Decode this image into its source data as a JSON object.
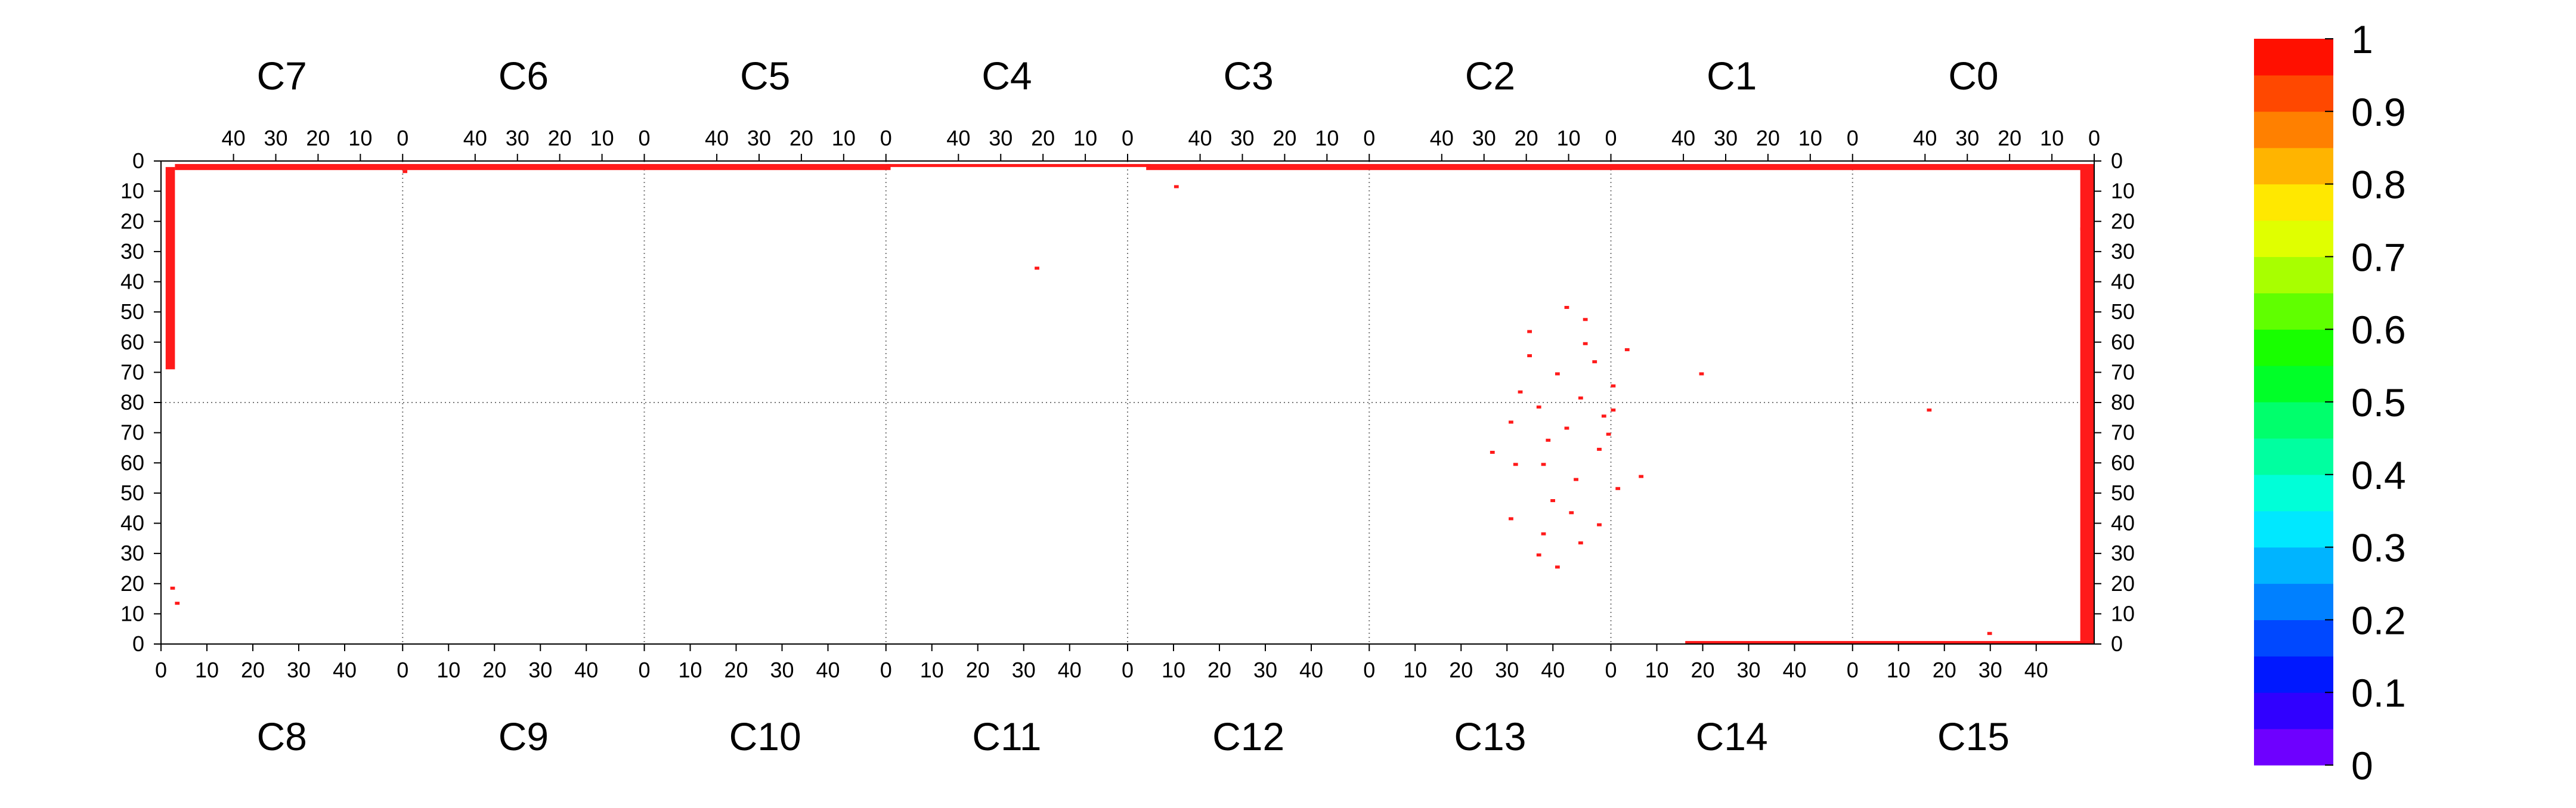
{
  "chart_data": {
    "type": "heatmap",
    "title": "",
    "xlabel": "",
    "ylabel": "",
    "chip_labels_top": [
      "C7",
      "C6",
      "C5",
      "C4",
      "C3",
      "C2",
      "C1",
      "C0"
    ],
    "chip_labels_bottom": [
      "C8",
      "C9",
      "C10",
      "C11",
      "C12",
      "C13",
      "C14",
      "C15"
    ],
    "x_tick_labels_top": [
      "40",
      "30",
      "20",
      "10",
      "0"
    ],
    "x_tick_labels_bottom": [
      "0",
      "10",
      "20",
      "30",
      "40"
    ],
    "y_tick_labels_top_half": [
      "0",
      "10",
      "20",
      "30",
      "40",
      "50",
      "60",
      "70",
      "80"
    ],
    "y_tick_labels_bottom_half": [
      "0",
      "10",
      "20",
      "30",
      "40",
      "50",
      "60",
      "70"
    ],
    "colorbar": {
      "tick_labels": [
        "1",
        "0.9",
        "0.8",
        "0.7",
        "0.6",
        "0.5",
        "0.4",
        "0.3",
        "0.2",
        "0.1",
        "0"
      ],
      "zlim": [
        0,
        1
      ],
      "palette": [
        "#6e00ff",
        "#3000ff",
        "#0018ff",
        "#0048ff",
        "#0080ff",
        "#00b4ff",
        "#00e8ff",
        "#00ffd8",
        "#00ffa0",
        "#00ff6c",
        "#00ff28",
        "#18ff00",
        "#60ff00",
        "#a8ff00",
        "#e0ff00",
        "#ffe800",
        "#ffb400",
        "#ff8000",
        "#ff4800",
        "#ff1000"
      ]
    },
    "grid": true,
    "legend": "colorbar-right",
    "high_value_color": "#ff1a1a",
    "pixel_columns": 416,
    "pixel_rows": 160,
    "hot_regions_value": 1,
    "hot_regions": [
      {
        "col0": 3,
        "col1": 156,
        "row0": 1,
        "row1": 2
      },
      {
        "col0": 156,
        "col1": 212,
        "row0": 1,
        "row1": 1
      },
      {
        "col0": 212,
        "col1": 415,
        "row0": 1,
        "row1": 2
      },
      {
        "col0": 1,
        "col1": 2,
        "row0": 2,
        "row1": 68
      },
      {
        "col0": 413,
        "col1": 415,
        "row0": 2,
        "row1": 22
      },
      {
        "col0": 413,
        "col1": 415,
        "row0": 22,
        "row1": 158
      },
      {
        "col0": 328,
        "col1": 415,
        "row0": 159,
        "row1": 159
      }
    ],
    "hot_pixels": [
      [
        3,
        146
      ],
      [
        2,
        141
      ],
      [
        393,
        156
      ],
      [
        380,
        82
      ],
      [
        52,
        3
      ],
      [
        188,
        35
      ],
      [
        218,
        8
      ],
      [
        297,
        123
      ],
      [
        331,
        70
      ],
      [
        296,
        81
      ],
      [
        290,
        86
      ],
      [
        302,
        88
      ],
      [
        310,
        84
      ],
      [
        294,
        64
      ],
      [
        300,
        70
      ],
      [
        306,
        60
      ],
      [
        312,
        74
      ],
      [
        309,
        95
      ],
      [
        297,
        100
      ],
      [
        304,
        105
      ],
      [
        299,
        112
      ],
      [
        290,
        118
      ],
      [
        302,
        48
      ],
      [
        306,
        52
      ],
      [
        294,
        56
      ],
      [
        308,
        66
      ],
      [
        315,
        62
      ],
      [
        311,
        90
      ],
      [
        303,
        116
      ],
      [
        296,
        130
      ],
      [
        300,
        134
      ],
      [
        305,
        126
      ],
      [
        309,
        120
      ],
      [
        313,
        108
      ],
      [
        291,
        100
      ],
      [
        318,
        104
      ],
      [
        286,
        96
      ],
      [
        292,
        76
      ],
      [
        305,
        78
      ],
      [
        312,
        82
      ],
      [
        298,
        92
      ]
    ]
  }
}
